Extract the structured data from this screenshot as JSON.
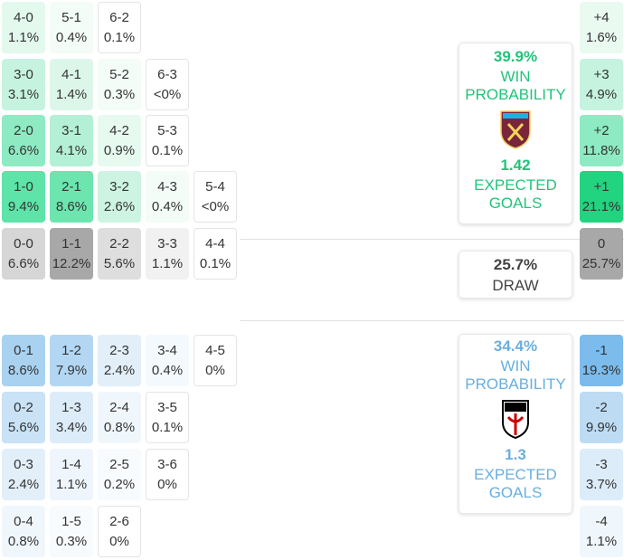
{
  "home": {
    "rows": [
      [
        {
          "score": "4-0",
          "prob": "1.1%",
          "color": "#e3f9ee"
        },
        {
          "score": "5-1",
          "prob": "0.4%",
          "color": "#f3fcf7"
        },
        {
          "score": "6-2",
          "prob": "0.1%",
          "color": "#ffffff"
        }
      ],
      [
        {
          "score": "3-0",
          "prob": "3.1%",
          "color": "#c6f3df"
        },
        {
          "score": "4-1",
          "prob": "1.4%",
          "color": "#dcf7ea"
        },
        {
          "score": "5-2",
          "prob": "0.3%",
          "color": "#f3fcf7"
        },
        {
          "score": "6-3",
          "prob": "<0%",
          "color": "#ffffff"
        }
      ],
      [
        {
          "score": "2-0",
          "prob": "6.6%",
          "color": "#8eeac2"
        },
        {
          "score": "3-1",
          "prob": "4.1%",
          "color": "#b4f0d5"
        },
        {
          "score": "4-2",
          "prob": "0.9%",
          "color": "#e6faf0"
        },
        {
          "score": "5-3",
          "prob": "0.1%",
          "color": "#ffffff"
        }
      ],
      [
        {
          "score": "1-0",
          "prob": "9.4%",
          "color": "#5ee3a8"
        },
        {
          "score": "2-1",
          "prob": "8.6%",
          "color": "#6de5af"
        },
        {
          "score": "3-2",
          "prob": "2.6%",
          "color": "#cdf4e2"
        },
        {
          "score": "4-3",
          "prob": "0.4%",
          "color": "#f3fcf7"
        },
        {
          "score": "5-4",
          "prob": "<0%",
          "color": "#ffffff"
        }
      ]
    ],
    "margins": [
      {
        "score": "+4",
        "prob": "1.6%",
        "color": "#e9faf1"
      },
      {
        "score": "+3",
        "prob": "4.9%",
        "color": "#c6f3df"
      },
      {
        "score": "+2",
        "prob": "11.8%",
        "color": "#8eeac2"
      },
      {
        "score": "+1",
        "prob": "21.1%",
        "color": "#22d37f"
      }
    ]
  },
  "draw": {
    "rows": [
      [
        {
          "score": "0-0",
          "prob": "6.6%",
          "color": "#d6d6d6"
        },
        {
          "score": "1-1",
          "prob": "12.2%",
          "color": "#a8a8a8"
        },
        {
          "score": "2-2",
          "prob": "5.6%",
          "color": "#dedede"
        },
        {
          "score": "3-3",
          "prob": "1.1%",
          "color": "#f1f1f1"
        },
        {
          "score": "4-4",
          "prob": "0.1%",
          "color": "#ffffff"
        }
      ]
    ],
    "margins": [
      {
        "score": "0",
        "prob": "25.7%",
        "color": "#a8a8a8"
      }
    ]
  },
  "away": {
    "rows": [
      [
        {
          "score": "0-1",
          "prob": "8.6%",
          "color": "#a9d2f1"
        },
        {
          "score": "1-2",
          "prob": "7.9%",
          "color": "#b3d7f3"
        },
        {
          "score": "2-3",
          "prob": "2.4%",
          "color": "#e2eff9"
        },
        {
          "score": "3-4",
          "prob": "0.4%",
          "color": "#f4f9fd"
        },
        {
          "score": "4-5",
          "prob": "0%",
          "color": "#ffffff"
        }
      ],
      [
        {
          "score": "0-2",
          "prob": "5.6%",
          "color": "#c9e2f6"
        },
        {
          "score": "1-3",
          "prob": "3.4%",
          "color": "#dcecf9"
        },
        {
          "score": "2-4",
          "prob": "0.8%",
          "color": "#f0f7fc"
        },
        {
          "score": "3-5",
          "prob": "0.1%",
          "color": "#ffffff"
        }
      ],
      [
        {
          "score": "0-3",
          "prob": "2.4%",
          "color": "#e2eff9"
        },
        {
          "score": "1-4",
          "prob": "1.1%",
          "color": "#eef5fc"
        },
        {
          "score": "2-5",
          "prob": "0.2%",
          "color": "#f8fbfe"
        },
        {
          "score": "3-6",
          "prob": "0%",
          "color": "#ffffff"
        }
      ],
      [
        {
          "score": "0-4",
          "prob": "0.8%",
          "color": "#f0f7fc"
        },
        {
          "score": "1-5",
          "prob": "0.3%",
          "color": "#f8fbfe"
        },
        {
          "score": "2-6",
          "prob": "0%",
          "color": "#ffffff"
        }
      ]
    ],
    "margins": [
      {
        "score": "-1",
        "prob": "19.3%",
        "color": "#7bbcec"
      },
      {
        "score": "-2",
        "prob": "9.9%",
        "color": "#bddcf4"
      },
      {
        "score": "-3",
        "prob": "3.7%",
        "color": "#dcecf9"
      },
      {
        "score": "-4",
        "prob": "1.1%",
        "color": "#f0f7fc"
      }
    ]
  },
  "summary": {
    "home": {
      "win_probability": "39.9%",
      "win_label": "WIN PROBABILITY",
      "expected_goals": "1.42",
      "xg_label": "EXPECTED GOALS"
    },
    "draw": {
      "probability": "25.7%",
      "label": "DRAW"
    },
    "away": {
      "win_probability": "34.4%",
      "win_label": "WIN PROBABILITY",
      "expected_goals": "1.3",
      "xg_label": "EXPECTED GOALS"
    }
  }
}
